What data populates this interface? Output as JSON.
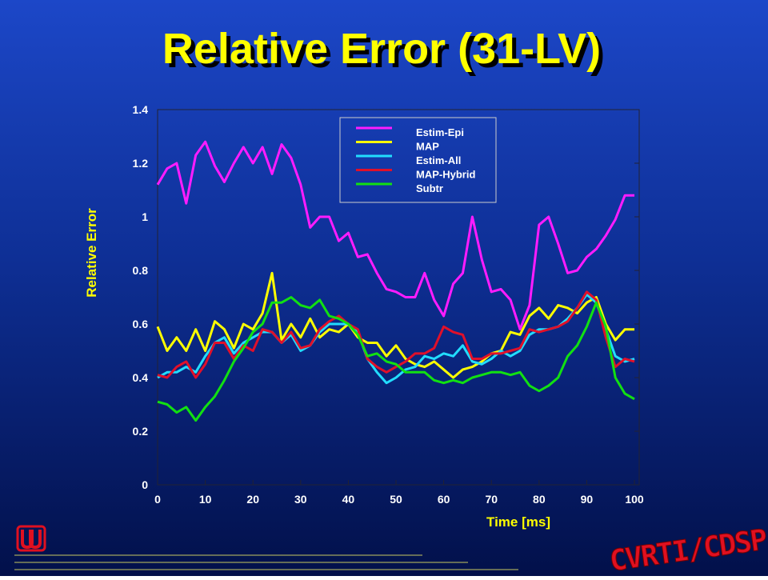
{
  "chart_data": {
    "type": "line",
    "title": "Relative Error (31-LV)",
    "x_label": "Time [ms]",
    "y_label": "Relative Error",
    "x": [
      0,
      2,
      4,
      6,
      8,
      10,
      12,
      14,
      16,
      18,
      20,
      22,
      24,
      26,
      28,
      30,
      32,
      34,
      36,
      38,
      40,
      42,
      44,
      46,
      48,
      50,
      52,
      54,
      56,
      58,
      60,
      62,
      64,
      66,
      68,
      70,
      72,
      74,
      76,
      78,
      80,
      82,
      84,
      86,
      88,
      90,
      92,
      94,
      96,
      98,
      100
    ],
    "series": [
      {
        "name": "Estim-Epi",
        "color": "#ff1cff",
        "values": [
          1.12,
          1.18,
          1.2,
          1.05,
          1.23,
          1.28,
          1.19,
          1.13,
          1.2,
          1.26,
          1.2,
          1.26,
          1.16,
          1.27,
          1.22,
          1.12,
          0.96,
          1.0,
          1.0,
          0.91,
          0.94,
          0.85,
          0.86,
          0.79,
          0.73,
          0.72,
          0.7,
          0.7,
          0.79,
          0.69,
          0.63,
          0.75,
          0.79,
          1.0,
          0.84,
          0.72,
          0.73,
          0.69,
          0.58,
          0.67,
          0.97,
          1.0,
          0.9,
          0.79,
          0.8,
          0.85,
          0.88,
          0.93,
          0.99,
          1.08,
          1.08
        ]
      },
      {
        "name": "MAP",
        "color": "#ffff00",
        "values": [
          0.59,
          0.5,
          0.55,
          0.5,
          0.58,
          0.5,
          0.61,
          0.58,
          0.51,
          0.6,
          0.58,
          0.64,
          0.79,
          0.54,
          0.6,
          0.55,
          0.62,
          0.55,
          0.58,
          0.57,
          0.6,
          0.55,
          0.53,
          0.53,
          0.48,
          0.52,
          0.47,
          0.45,
          0.44,
          0.46,
          0.43,
          0.4,
          0.43,
          0.44,
          0.46,
          0.49,
          0.5,
          0.57,
          0.56,
          0.63,
          0.66,
          0.62,
          0.67,
          0.66,
          0.64,
          0.68,
          0.7,
          0.6,
          0.54,
          0.58,
          0.58
        ]
      },
      {
        "name": "Estim-All",
        "color": "#22ddff",
        "values": [
          0.4,
          0.42,
          0.42,
          0.44,
          0.42,
          0.48,
          0.53,
          0.55,
          0.49,
          0.53,
          0.55,
          0.57,
          0.57,
          0.53,
          0.56,
          0.5,
          0.52,
          0.57,
          0.6,
          0.6,
          0.6,
          0.57,
          0.47,
          0.42,
          0.38,
          0.4,
          0.43,
          0.44,
          0.48,
          0.47,
          0.49,
          0.48,
          0.52,
          0.46,
          0.45,
          0.47,
          0.5,
          0.48,
          0.5,
          0.56,
          0.58,
          0.58,
          0.59,
          0.62,
          0.66,
          0.71,
          0.68,
          0.58,
          0.48,
          0.46,
          0.47
        ]
      },
      {
        "name": "MAP-Hybrid",
        "color": "#e0102a",
        "values": [
          0.41,
          0.4,
          0.44,
          0.46,
          0.4,
          0.45,
          0.53,
          0.53,
          0.47,
          0.52,
          0.5,
          0.58,
          0.57,
          0.53,
          0.57,
          0.51,
          0.52,
          0.58,
          0.61,
          0.63,
          0.6,
          0.58,
          0.47,
          0.44,
          0.42,
          0.44,
          0.46,
          0.49,
          0.49,
          0.51,
          0.59,
          0.57,
          0.56,
          0.47,
          0.47,
          0.49,
          0.49,
          0.5,
          0.51,
          0.58,
          0.57,
          0.58,
          0.59,
          0.61,
          0.66,
          0.72,
          0.69,
          0.55,
          0.44,
          0.47,
          0.46
        ]
      },
      {
        "name": "Subtr",
        "color": "#12e012",
        "values": [
          0.31,
          0.3,
          0.27,
          0.29,
          0.24,
          0.29,
          0.33,
          0.39,
          0.46,
          0.51,
          0.57,
          0.6,
          0.68,
          0.68,
          0.7,
          0.67,
          0.66,
          0.69,
          0.63,
          0.62,
          0.6,
          0.56,
          0.48,
          0.49,
          0.46,
          0.45,
          0.42,
          0.42,
          0.42,
          0.39,
          0.38,
          0.39,
          0.38,
          0.4,
          0.41,
          0.42,
          0.42,
          0.41,
          0.42,
          0.37,
          0.35,
          0.37,
          0.4,
          0.48,
          0.52,
          0.59,
          0.68,
          0.59,
          0.4,
          0.34,
          0.32
        ]
      }
    ],
    "xlim": [
      0,
      101
    ],
    "ylim": [
      0,
      1.4
    ],
    "xticks": [
      0,
      10,
      20,
      30,
      40,
      50,
      60,
      70,
      80,
      90,
      100
    ],
    "yticks": [
      0,
      0.2,
      0.4,
      0.6,
      0.8,
      1,
      1.2,
      1.4
    ]
  },
  "logo_text": "CVRTI/CDSP"
}
